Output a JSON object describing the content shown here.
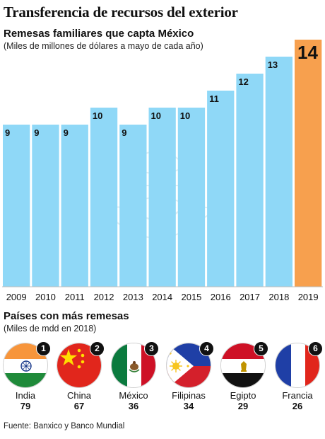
{
  "header": {
    "title": "Transferencia de recursos del exterior",
    "subtitle": "Remesas familiares que capta México",
    "note": "(Miles de millones de dólares a mayo de cada año)"
  },
  "chart_data": {
    "type": "bar",
    "categories": [
      "2009",
      "2010",
      "2011",
      "2012",
      "2013",
      "2014",
      "2015",
      "2016",
      "2017",
      "2018",
      "2019"
    ],
    "values": [
      9,
      9,
      9,
      10,
      9,
      10,
      10,
      11,
      12,
      13,
      14
    ],
    "title": "Remesas familiares que capta México",
    "xlabel": "",
    "ylabel": "",
    "ylim": [
      0,
      14
    ],
    "grid": false,
    "colors": {
      "bar": "#8fd8f7",
      "highlight": "#f7a04e"
    },
    "highlight_index": 10
  },
  "ranking": {
    "title": "Países con más remesas",
    "note": "(Miles de mdd en 2018)",
    "countries": [
      {
        "rank": "1",
        "name": "India",
        "value": "79",
        "flag": "india-flag-icon"
      },
      {
        "rank": "2",
        "name": "China",
        "value": "67",
        "flag": "china-flag-icon"
      },
      {
        "rank": "3",
        "name": "México",
        "value": "36",
        "flag": "mexico-flag-icon"
      },
      {
        "rank": "4",
        "name": "Filipinas",
        "value": "34",
        "flag": "philippines-flag-icon"
      },
      {
        "rank": "5",
        "name": "Egipto",
        "value": "29",
        "flag": "egypt-flag-icon"
      },
      {
        "rank": "6",
        "name": "Francia",
        "value": "26",
        "flag": "france-flag-icon"
      }
    ]
  },
  "footer": {
    "source": "Fuente: Banxico y Banco Mundial"
  }
}
